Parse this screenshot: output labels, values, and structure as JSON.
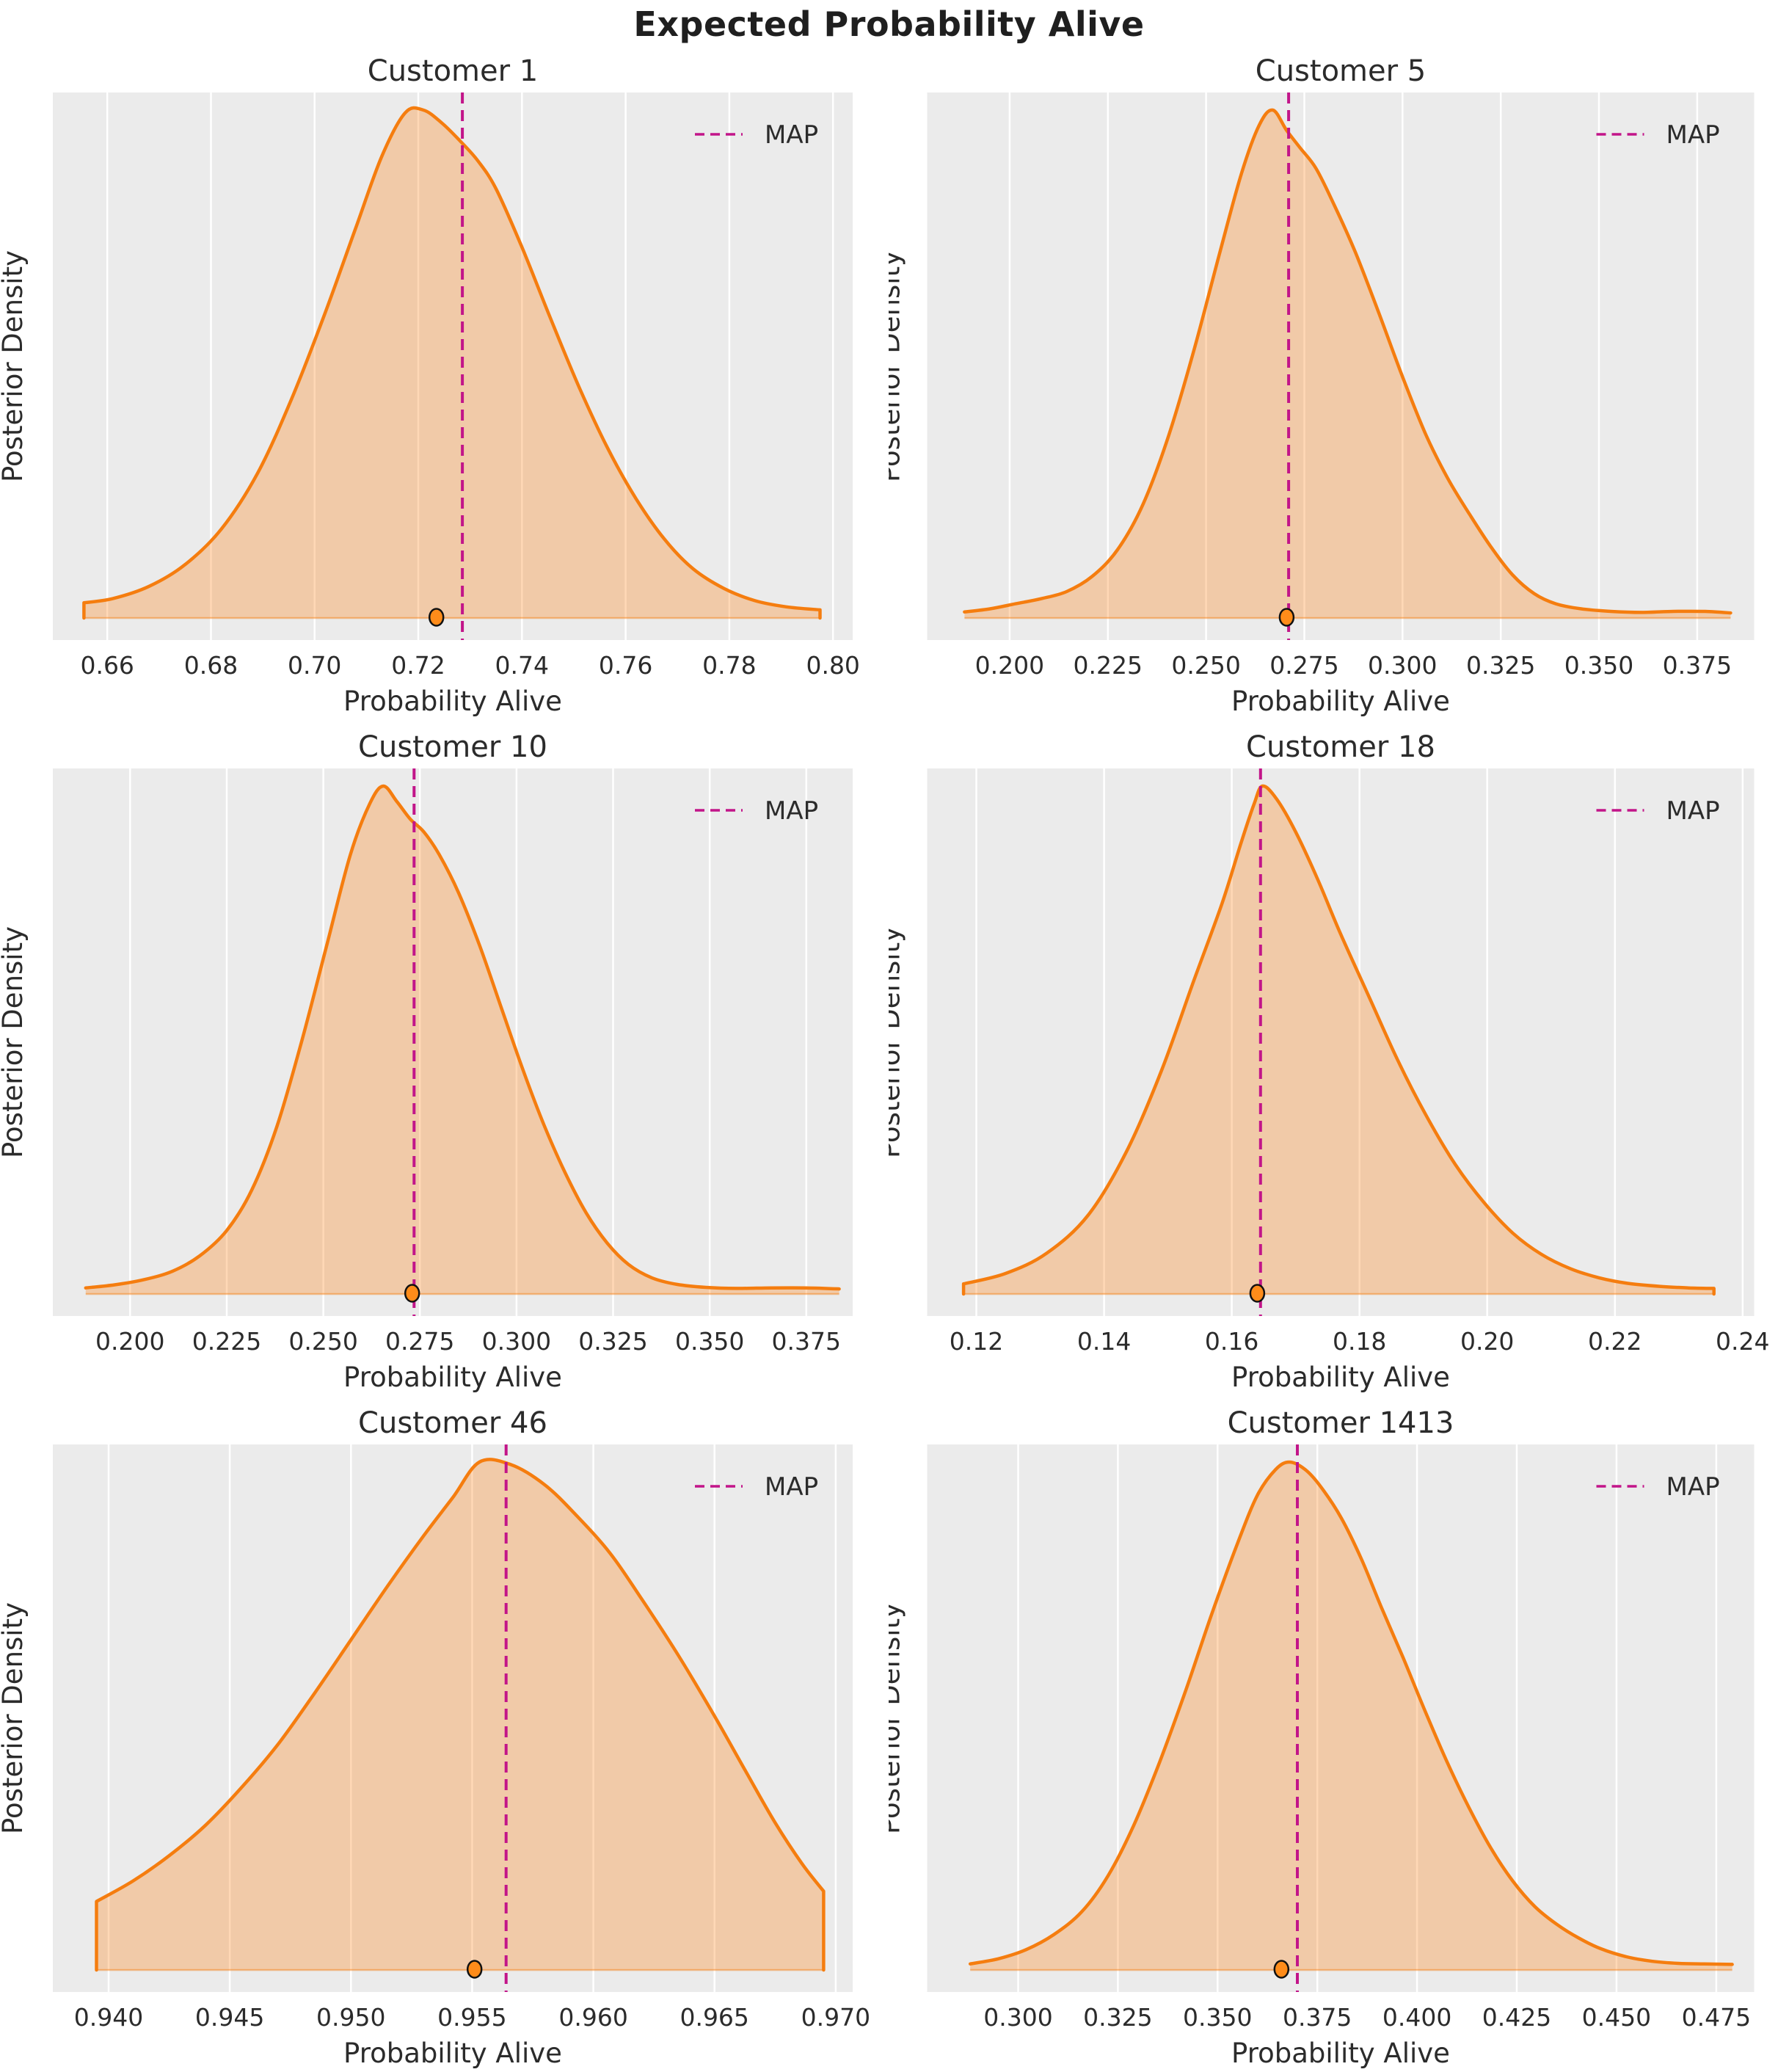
{
  "chart_data": {
    "type": "kde-grid",
    "suptitle": "Expected Probability Alive",
    "xlabel": "Probability Alive",
    "ylabel": "Posterior Density",
    "legend_label": "MAP",
    "legend_position": "upper right",
    "grid": "vertical gridlines only",
    "colors": {
      "curve": "#f57d0f",
      "fill": "#ff7f0e",
      "fill_opacity": 0.3,
      "map_line": "#c21589",
      "plot_bg": "#ebebeb",
      "gridline": "#ffffff",
      "text": "#2b2b2b",
      "dot_fill": "#ff8c1a",
      "dot_edge": "#111111"
    },
    "plots": [
      {
        "title": "Customer 1",
        "xmin": 0.6495,
        "xmax": 0.8038,
        "tick_values": [
          0.66,
          0.68,
          0.7,
          0.72,
          0.74,
          0.76,
          0.78,
          0.8
        ],
        "tick_labels": [
          "0.66",
          "0.68",
          "0.70",
          "0.72",
          "0.74",
          "0.76",
          "0.78",
          "0.80"
        ],
        "map": 0.7285,
        "dot": 0.7235,
        "edges": [
          true,
          true
        ],
        "curve": [
          [
            0.6555,
            0.03
          ],
          [
            0.661,
            0.038
          ],
          [
            0.668,
            0.062
          ],
          [
            0.675,
            0.105
          ],
          [
            0.682,
            0.175
          ],
          [
            0.689,
            0.285
          ],
          [
            0.6955,
            0.43
          ],
          [
            0.702,
            0.6
          ],
          [
            0.708,
            0.77
          ],
          [
            0.713,
            0.91
          ],
          [
            0.7175,
            0.995
          ],
          [
            0.721,
            1.0
          ],
          [
            0.7245,
            0.975
          ],
          [
            0.728,
            0.94
          ],
          [
            0.7315,
            0.9
          ],
          [
            0.735,
            0.845
          ],
          [
            0.74,
            0.73
          ],
          [
            0.7455,
            0.59
          ],
          [
            0.751,
            0.455
          ],
          [
            0.7565,
            0.335
          ],
          [
            0.762,
            0.235
          ],
          [
            0.7675,
            0.155
          ],
          [
            0.773,
            0.097
          ],
          [
            0.779,
            0.058
          ],
          [
            0.785,
            0.034
          ],
          [
            0.791,
            0.022
          ],
          [
            0.7975,
            0.016
          ]
        ]
      },
      {
        "title": "Customer 5",
        "xmin": 0.179,
        "xmax": 0.3895,
        "tick_values": [
          0.2,
          0.225,
          0.25,
          0.275,
          0.3,
          0.325,
          0.35,
          0.375
        ],
        "tick_labels": [
          "0.200",
          "0.225",
          "0.250",
          "0.275",
          "0.300",
          "0.325",
          "0.350",
          "0.375"
        ],
        "map": 0.271,
        "dot": 0.2705,
        "edges": [
          false,
          false
        ],
        "curve": [
          [
            0.1885,
            0.012
          ],
          [
            0.195,
            0.018
          ],
          [
            0.2015,
            0.028
          ],
          [
            0.208,
            0.038
          ],
          [
            0.2145,
            0.052
          ],
          [
            0.221,
            0.082
          ],
          [
            0.2275,
            0.135
          ],
          [
            0.234,
            0.225
          ],
          [
            0.2405,
            0.36
          ],
          [
            0.247,
            0.53
          ],
          [
            0.2535,
            0.72
          ],
          [
            0.259,
            0.875
          ],
          [
            0.2635,
            0.97
          ],
          [
            0.267,
            1.0
          ],
          [
            0.2705,
            0.96
          ],
          [
            0.274,
            0.925
          ],
          [
            0.278,
            0.885
          ],
          [
            0.2825,
            0.815
          ],
          [
            0.288,
            0.72
          ],
          [
            0.294,
            0.6
          ],
          [
            0.3,
            0.475
          ],
          [
            0.306,
            0.36
          ],
          [
            0.3115,
            0.275
          ],
          [
            0.317,
            0.205
          ],
          [
            0.3225,
            0.14
          ],
          [
            0.328,
            0.085
          ],
          [
            0.3335,
            0.048
          ],
          [
            0.339,
            0.028
          ],
          [
            0.3455,
            0.018
          ],
          [
            0.353,
            0.013
          ],
          [
            0.361,
            0.011
          ],
          [
            0.369,
            0.013
          ],
          [
            0.377,
            0.013
          ],
          [
            0.3835,
            0.01
          ]
        ]
      },
      {
        "title": "Customer 10",
        "xmin": 0.18,
        "xmax": 0.387,
        "tick_values": [
          0.2,
          0.225,
          0.25,
          0.275,
          0.3,
          0.325,
          0.35,
          0.375
        ],
        "tick_labels": [
          "0.200",
          "0.225",
          "0.250",
          "0.275",
          "0.300",
          "0.325",
          "0.350",
          "0.375"
        ],
        "map": 0.2735,
        "dot": 0.273,
        "edges": [
          false,
          false
        ],
        "curve": [
          [
            0.1885,
            0.012
          ],
          [
            0.196,
            0.018
          ],
          [
            0.2035,
            0.028
          ],
          [
            0.211,
            0.045
          ],
          [
            0.218,
            0.075
          ],
          [
            0.225,
            0.125
          ],
          [
            0.2315,
            0.205
          ],
          [
            0.238,
            0.33
          ],
          [
            0.2445,
            0.5
          ],
          [
            0.251,
            0.69
          ],
          [
            0.257,
            0.865
          ],
          [
            0.262,
            0.965
          ],
          [
            0.2655,
            1.0
          ],
          [
            0.269,
            0.97
          ],
          [
            0.2725,
            0.935
          ],
          [
            0.276,
            0.91
          ],
          [
            0.28,
            0.865
          ],
          [
            0.285,
            0.79
          ],
          [
            0.2905,
            0.685
          ],
          [
            0.296,
            0.565
          ],
          [
            0.3015,
            0.445
          ],
          [
            0.307,
            0.335
          ],
          [
            0.3125,
            0.24
          ],
          [
            0.318,
            0.16
          ],
          [
            0.3235,
            0.1
          ],
          [
            0.329,
            0.058
          ],
          [
            0.335,
            0.032
          ],
          [
            0.3415,
            0.019
          ],
          [
            0.349,
            0.013
          ],
          [
            0.357,
            0.011
          ],
          [
            0.366,
            0.012
          ],
          [
            0.375,
            0.012
          ],
          [
            0.3835,
            0.01
          ]
        ]
      },
      {
        "title": "Customer 18",
        "xmin": 0.1123,
        "xmax": 0.2418,
        "tick_values": [
          0.12,
          0.14,
          0.16,
          0.18,
          0.2,
          0.22,
          0.24
        ],
        "tick_labels": [
          "0.12",
          "0.14",
          "0.16",
          "0.18",
          "0.20",
          "0.22",
          "0.24"
        ],
        "map": 0.1645,
        "dot": 0.164,
        "edges": [
          true,
          true
        ],
        "curve": [
          [
            0.118,
            0.02
          ],
          [
            0.1245,
            0.04
          ],
          [
            0.131,
            0.08
          ],
          [
            0.1375,
            0.155
          ],
          [
            0.1435,
            0.28
          ],
          [
            0.149,
            0.44
          ],
          [
            0.154,
            0.615
          ],
          [
            0.1585,
            0.77
          ],
          [
            0.1615,
            0.89
          ],
          [
            0.1635,
            0.965
          ],
          [
            0.1648,
            1.0
          ],
          [
            0.167,
            0.975
          ],
          [
            0.17,
            0.91
          ],
          [
            0.1735,
            0.815
          ],
          [
            0.177,
            0.71
          ],
          [
            0.1815,
            0.585
          ],
          [
            0.186,
            0.46
          ],
          [
            0.1905,
            0.35
          ],
          [
            0.195,
            0.255
          ],
          [
            0.1995,
            0.18
          ],
          [
            0.204,
            0.12
          ],
          [
            0.2085,
            0.078
          ],
          [
            0.213,
            0.05
          ],
          [
            0.2175,
            0.032
          ],
          [
            0.222,
            0.021
          ],
          [
            0.227,
            0.015
          ],
          [
            0.2315,
            0.012
          ],
          [
            0.2355,
            0.011
          ]
        ]
      },
      {
        "title": "Customer 46",
        "xmin": 0.9377,
        "xmax": 0.9707,
        "tick_values": [
          0.94,
          0.945,
          0.95,
          0.955,
          0.96,
          0.965,
          0.97
        ],
        "tick_labels": [
          "0.940",
          "0.945",
          "0.950",
          "0.955",
          "0.960",
          "0.965",
          "0.970"
        ],
        "map": 0.9564,
        "dot": 0.9551,
        "edges": [
          true,
          true
        ],
        "curve": [
          [
            0.9395,
            0.135
          ],
          [
            0.941,
            0.175
          ],
          [
            0.9425,
            0.225
          ],
          [
            0.944,
            0.285
          ],
          [
            0.9455,
            0.36
          ],
          [
            0.947,
            0.445
          ],
          [
            0.9485,
            0.545
          ],
          [
            0.95,
            0.65
          ],
          [
            0.9515,
            0.755
          ],
          [
            0.953,
            0.855
          ],
          [
            0.9542,
            0.93
          ],
          [
            0.9553,
            1.0
          ],
          [
            0.9566,
            0.995
          ],
          [
            0.958,
            0.955
          ],
          [
            0.9593,
            0.895
          ],
          [
            0.9607,
            0.82
          ],
          [
            0.962,
            0.73
          ],
          [
            0.9635,
            0.62
          ],
          [
            0.965,
            0.5
          ],
          [
            0.9663,
            0.39
          ],
          [
            0.9675,
            0.29
          ],
          [
            0.9686,
            0.21
          ],
          [
            0.9695,
            0.155
          ]
        ]
      },
      {
        "title": "Customer 1413",
        "xmin": 0.2772,
        "xmax": 0.4845,
        "tick_values": [
          0.3,
          0.325,
          0.35,
          0.375,
          0.4,
          0.425,
          0.45,
          0.475
        ],
        "tick_labels": [
          "0.300",
          "0.325",
          "0.350",
          "0.375",
          "0.400",
          "0.425",
          "0.450",
          "0.475"
        ],
        "map": 0.37,
        "dot": 0.366,
        "edges": [
          false,
          false
        ],
        "curve": [
          [
            0.288,
            0.012
          ],
          [
            0.295,
            0.022
          ],
          [
            0.302,
            0.04
          ],
          [
            0.309,
            0.07
          ],
          [
            0.316,
            0.115
          ],
          [
            0.3225,
            0.185
          ],
          [
            0.329,
            0.285
          ],
          [
            0.3355,
            0.41
          ],
          [
            0.342,
            0.55
          ],
          [
            0.3485,
            0.7
          ],
          [
            0.355,
            0.84
          ],
          [
            0.36,
            0.935
          ],
          [
            0.3645,
            0.985
          ],
          [
            0.368,
            1.0
          ],
          [
            0.372,
            0.985
          ],
          [
            0.376,
            0.95
          ],
          [
            0.381,
            0.89
          ],
          [
            0.386,
            0.81
          ],
          [
            0.391,
            0.715
          ],
          [
            0.3965,
            0.615
          ],
          [
            0.402,
            0.51
          ],
          [
            0.4075,
            0.41
          ],
          [
            0.413,
            0.32
          ],
          [
            0.4185,
            0.24
          ],
          [
            0.424,
            0.175
          ],
          [
            0.4295,
            0.125
          ],
          [
            0.435,
            0.09
          ],
          [
            0.4405,
            0.063
          ],
          [
            0.446,
            0.042
          ],
          [
            0.4525,
            0.026
          ],
          [
            0.459,
            0.017
          ],
          [
            0.4655,
            0.013
          ],
          [
            0.472,
            0.012
          ],
          [
            0.479,
            0.011
          ]
        ]
      }
    ]
  }
}
